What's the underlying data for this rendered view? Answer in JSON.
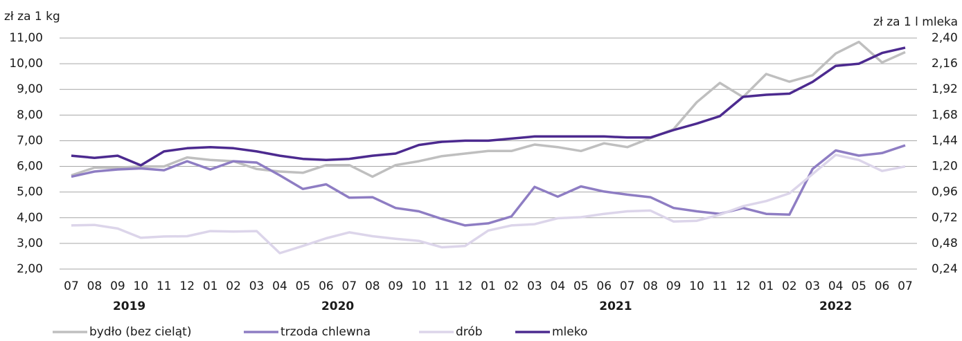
{
  "chart_data": {
    "type": "line",
    "y_label": "zł za 1 kg",
    "y2_label": "zł za 1 l mleka",
    "categories": [
      "07",
      "08",
      "09",
      "10",
      "11",
      "12",
      "01",
      "02",
      "03",
      "04",
      "05",
      "06",
      "07",
      "08",
      "09",
      "10",
      "11",
      "12",
      "01",
      "02",
      "03",
      "04",
      "05",
      "06",
      "07",
      "08",
      "09",
      "10",
      "11",
      "12",
      "01",
      "02",
      "03",
      "04",
      "05",
      "06",
      "07"
    ],
    "years": [
      "2019",
      "2020",
      "2021",
      "2022"
    ],
    "ylim": [
      2,
      11
    ],
    "yticks": [
      {
        "value": 2,
        "label": "2,00"
      },
      {
        "value": 3,
        "label": "3,00"
      },
      {
        "value": 4,
        "label": "4,00"
      },
      {
        "value": 5,
        "label": "5,00"
      },
      {
        "value": 6,
        "label": "6,00"
      },
      {
        "value": 7,
        "label": "7,00"
      },
      {
        "value": 8,
        "label": "8,00"
      },
      {
        "value": 9,
        "label": "9,00"
      },
      {
        "value": 10,
        "label": "10,00"
      },
      {
        "value": 11,
        "label": "11,00"
      }
    ],
    "y2lim": [
      0.24,
      2.4
    ],
    "y2ticks": [
      {
        "value": 0.24,
        "label": "0,24"
      },
      {
        "value": 0.48,
        "label": "0,48"
      },
      {
        "value": 0.72,
        "label": "0,72"
      },
      {
        "value": 0.96,
        "label": "0,96"
      },
      {
        "value": 1.2,
        "label": "1,20"
      },
      {
        "value": 1.44,
        "label": "1,44"
      },
      {
        "value": 1.68,
        "label": "1,68"
      },
      {
        "value": 1.92,
        "label": "1,92"
      },
      {
        "value": 2.16,
        "label": "2,16"
      },
      {
        "value": 2.4,
        "label": "2,40"
      }
    ],
    "grid": true,
    "legend": "bottom",
    "series": [
      {
        "name": "bydło (bez cieląt)",
        "color": "#bfbfbf",
        "values": [
          5.65,
          5.95,
          5.95,
          6.0,
          6.0,
          6.35,
          6.25,
          6.2,
          5.9,
          5.8,
          5.75,
          6.05,
          6.05,
          5.6,
          6.05,
          6.2,
          6.4,
          6.5,
          6.6,
          6.6,
          6.85,
          6.75,
          6.6,
          6.9,
          6.75,
          7.1,
          7.45,
          8.5,
          9.25,
          8.7,
          9.6,
          9.3,
          9.55,
          10.4,
          10.85,
          10.05,
          10.45
        ]
      },
      {
        "name": "trzoda chlewna",
        "color": "#8e7dc3",
        "values": [
          5.6,
          5.8,
          5.88,
          5.92,
          5.85,
          6.2,
          5.88,
          6.2,
          6.15,
          5.65,
          5.12,
          5.3,
          4.78,
          4.8,
          4.38,
          4.25,
          3.95,
          3.7,
          3.78,
          4.05,
          5.2,
          4.82,
          5.22,
          5.02,
          4.9,
          4.8,
          4.38,
          4.25,
          4.15,
          4.38,
          4.15,
          4.12,
          5.9,
          6.62,
          6.42,
          6.52,
          6.82
        ]
      },
      {
        "name": "drób",
        "color": "#dcd5ea",
        "values": [
          3.7,
          3.72,
          3.58,
          3.22,
          3.27,
          3.28,
          3.48,
          3.46,
          3.48,
          2.62,
          2.9,
          3.2,
          3.43,
          3.28,
          3.18,
          3.1,
          2.85,
          2.9,
          3.5,
          3.7,
          3.75,
          3.98,
          4.02,
          4.15,
          4.25,
          4.28,
          3.85,
          3.88,
          4.12,
          4.45,
          4.65,
          4.95,
          5.7,
          6.45,
          6.25,
          5.82,
          6.0
        ]
      },
      {
        "name": "mleko",
        "color": "#4c2a8f",
        "axis": "y2",
        "values": [
          1.3,
          1.28,
          1.3,
          1.21,
          1.34,
          1.37,
          1.38,
          1.37,
          1.34,
          1.3,
          1.27,
          1.26,
          1.27,
          1.3,
          1.32,
          1.4,
          1.43,
          1.44,
          1.44,
          1.46,
          1.48,
          1.48,
          1.48,
          1.48,
          1.47,
          1.47,
          1.54,
          1.6,
          1.67,
          1.85,
          1.87,
          1.88,
          1.99,
          2.14,
          2.16,
          2.26,
          2.31
        ]
      }
    ]
  }
}
